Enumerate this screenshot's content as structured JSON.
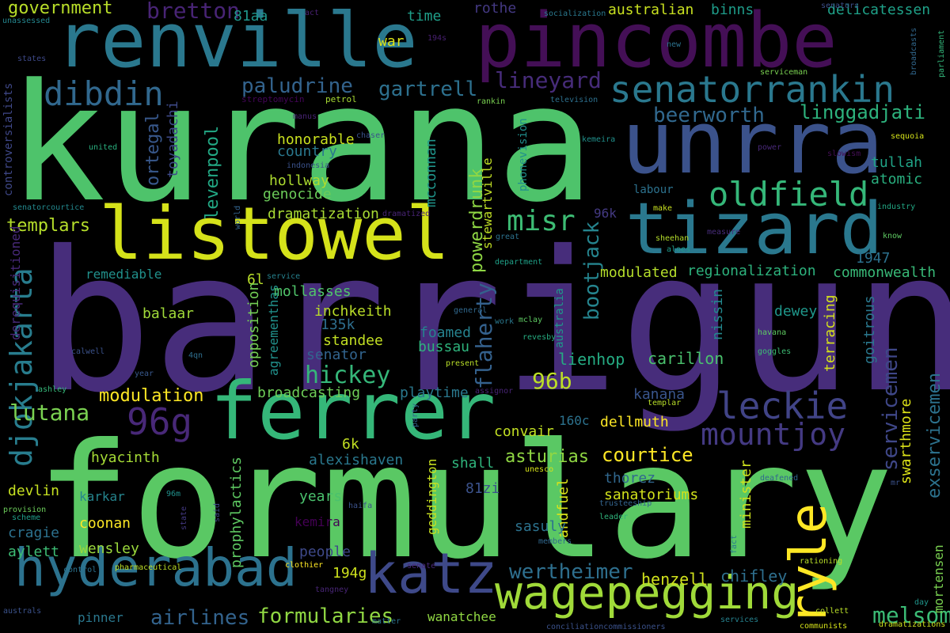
{
  "words": [
    {
      "text": "kurana",
      "color": "#4ec36b"
    },
    {
      "text": "barrigun",
      "color": "#472d7b"
    },
    {
      "text": "formulary",
      "color": "#5ac864"
    },
    {
      "text": "renville",
      "color": "#2a788e"
    },
    {
      "text": "pincombe",
      "color": "#440f56"
    },
    {
      "text": "unrra",
      "color": "#3b528b"
    },
    {
      "text": "listowel",
      "color": "#d5e21a"
    },
    {
      "text": "tizard",
      "color": "#2a788e"
    },
    {
      "text": "ferrer",
      "color": "#35b779"
    },
    {
      "text": "hyderabad",
      "color": "#2c728e"
    },
    {
      "text": "katz",
      "color": "#3e4989"
    },
    {
      "text": "wagepegging",
      "color": "#a0da39"
    },
    {
      "text": "ryle",
      "color": "#fde725"
    },
    {
      "text": "senatorrankin",
      "color": "#2a788e"
    },
    {
      "text": "oldfield",
      "color": "#35b779"
    },
    {
      "text": "leckie",
      "color": "#414487"
    },
    {
      "text": "mountjoy",
      "color": "#443a83"
    },
    {
      "text": "djokjakarta",
      "color": "#287d8e"
    },
    {
      "text": "96g",
      "color": "#482878"
    },
    {
      "text": "dibdin",
      "color": "#31688e"
    },
    {
      "text": "bretton",
      "color": "#482475"
    },
    {
      "text": "government",
      "color": "#b8de29"
    },
    {
      "text": "misr",
      "color": "#3dbc74"
    },
    {
      "text": "lineyard",
      "color": "#472c7a"
    },
    {
      "text": "paludrine",
      "color": "#33638d"
    },
    {
      "text": "gartrell",
      "color": "#2d708e"
    },
    {
      "text": "beerworth",
      "color": "#31688e"
    },
    {
      "text": "linggadjati",
      "color": "#2db27d"
    },
    {
      "text": "templars",
      "color": "#b5de2b"
    },
    {
      "text": "levenpool",
      "color": "#22a884"
    },
    {
      "text": "hickey",
      "color": "#35b779"
    },
    {
      "text": "modulation",
      "color": "#fde725"
    },
    {
      "text": "lutana",
      "color": "#7ad151"
    },
    {
      "text": "96b",
      "color": "#bddf26"
    },
    {
      "text": "formularies",
      "color": "#90d743"
    },
    {
      "text": "airlines",
      "color": "#33638d"
    },
    {
      "text": "wertheimer",
      "color": "#2e6f8e"
    },
    {
      "text": "courtice",
      "color": "#fde725"
    },
    {
      "text": "flaherty",
      "color": "#34618d"
    },
    {
      "text": "bootjack",
      "color": "#25848e"
    },
    {
      "text": "powerdrunk",
      "color": "#8fd744"
    },
    {
      "text": "servicemen",
      "color": "#3f4788"
    },
    {
      "text": "exservicemen",
      "color": "#2c728e"
    },
    {
      "text": "melsom",
      "color": "#3bbb75"
    },
    {
      "text": "mortensen",
      "color": "#7ad151"
    },
    {
      "text": "henzell",
      "color": "#d0e11c"
    },
    {
      "text": "chifley",
      "color": "#2e6f8e"
    },
    {
      "text": "regionalization",
      "color": "#2db27d"
    },
    {
      "text": "commonwealth",
      "color": "#38b977"
    },
    {
      "text": "modulated",
      "color": "#b5de2b"
    },
    {
      "text": "lienhop",
      "color": "#25ab82"
    },
    {
      "text": "carillon",
      "color": "#4ac16d"
    },
    {
      "text": "kanana",
      "color": "#39558c"
    },
    {
      "text": "dellmuth",
      "color": "#fde725"
    },
    {
      "text": "convair",
      "color": "#c2df23"
    },
    {
      "text": "asturias",
      "color": "#90d743"
    },
    {
      "text": "thorez",
      "color": "#31688e"
    },
    {
      "text": "sanatoriums",
      "color": "#d2e21b"
    },
    {
      "text": "andfuel",
      "color": "#dae319"
    },
    {
      "text": "minister",
      "color": "#cde11d"
    },
    {
      "text": "swarthmore",
      "color": "#dde318"
    },
    {
      "text": "goitrous",
      "color": "#2a788e"
    },
    {
      "text": "terracing",
      "color": "#d5e21a"
    },
    {
      "text": "nissin",
      "color": "#23888e"
    },
    {
      "text": "dewey",
      "color": "#1f978b"
    },
    {
      "text": "1947",
      "color": "#2c718e"
    },
    {
      "text": "tullah",
      "color": "#20a386"
    },
    {
      "text": "atomic",
      "color": "#29af7f"
    },
    {
      "text": "delicatessen",
      "color": "#1fa188"
    },
    {
      "text": "binns",
      "color": "#1e9c89"
    },
    {
      "text": "australian",
      "color": "#c8e020"
    },
    {
      "text": "rothe",
      "color": "#443983"
    },
    {
      "text": "time",
      "color": "#1f9e89"
    },
    {
      "text": "war",
      "color": "#dde318"
    },
    {
      "text": "81aa",
      "color": "#1f958b"
    },
    {
      "text": "mcconnan",
      "color": "#1f958b"
    },
    {
      "text": "stewartville",
      "color": "#c0df25"
    },
    {
      "text": "phonevision",
      "color": "#218f8d"
    },
    {
      "text": "honorable",
      "color": "#cae11f"
    },
    {
      "text": "country",
      "color": "#2a788e"
    },
    {
      "text": "hollway",
      "color": "#addc30"
    },
    {
      "text": "genocide",
      "color": "#6ccd5a"
    },
    {
      "text": "dramatization",
      "color": "#a8db34"
    },
    {
      "text": "ortegal",
      "color": "#38588c"
    },
    {
      "text": "toyadachi",
      "color": "#3e4a89"
    },
    {
      "text": "6l",
      "color": "#b8de29"
    },
    {
      "text": "opposition",
      "color": "#74d055"
    },
    {
      "text": "agreementhas",
      "color": "#21918c"
    },
    {
      "text": "inchkeith",
      "color": "#bade28"
    },
    {
      "text": "135k",
      "color": "#2e6e8e"
    },
    {
      "text": "standee",
      "color": "#c2df23"
    },
    {
      "text": "senator",
      "color": "#32648e"
    },
    {
      "text": "foamed",
      "color": "#26828e"
    },
    {
      "text": "bussau",
      "color": "#2eb37c"
    },
    {
      "text": "broadcasting",
      "color": "#6ece58"
    },
    {
      "text": "playtime",
      "color": "#2a788e"
    },
    {
      "text": "mollasses",
      "color": "#50c46a"
    },
    {
      "text": "remediable",
      "color": "#21918c"
    },
    {
      "text": "balaar",
      "color": "#a0da39"
    },
    {
      "text": "derequisitioned",
      "color": "#482979"
    },
    {
      "text": "hyacinth",
      "color": "#a5db36"
    },
    {
      "text": "devlin",
      "color": "#c5e021"
    },
    {
      "text": "karkar",
      "color": "#25858e"
    },
    {
      "text": "coonan",
      "color": "#fde725"
    },
    {
      "text": "cragie",
      "color": "#2c718e"
    },
    {
      "text": "aylett",
      "color": "#3dbc74"
    },
    {
      "text": "wensley",
      "color": "#9bd93c"
    },
    {
      "text": "alexishaven",
      "color": "#2a788e"
    },
    {
      "text": "6k",
      "color": "#c2df23"
    },
    {
      "text": "shall",
      "color": "#2fb47c"
    },
    {
      "text": "years",
      "color": "#4ac16d"
    },
    {
      "text": "people",
      "color": "#3e4989"
    },
    {
      "text": "kemira",
      "color": "#440154"
    },
    {
      "text": "sasuly",
      "color": "#2c728e"
    },
    {
      "text": "194g",
      "color": "#cde11d"
    },
    {
      "text": "81zi",
      "color": "#3b528b"
    },
    {
      "text": "geddington",
      "color": "#c8e020"
    },
    {
      "text": "prophylactics",
      "color": "#5ec962"
    },
    {
      "text": "wanatchee",
      "color": "#90d743"
    },
    {
      "text": "pinner",
      "color": "#2a788e"
    },
    {
      "text": "160c",
      "color": "#2c728e"
    },
    {
      "text": "australia",
      "color": "#1f988b"
    },
    {
      "text": "controversialists",
      "color": "#3f4889"
    },
    {
      "text": "senatorcourtice",
      "color": "#23898e"
    },
    {
      "text": "united",
      "color": "#2ab07f"
    },
    {
      "text": "indonesia",
      "color": "#3b528b"
    },
    {
      "text": "streptomycin",
      "color": "#450559"
    },
    {
      "text": "petrol",
      "color": "#a8db34"
    },
    {
      "text": "manus",
      "color": "#482374"
    },
    {
      "text": "rankin",
      "color": "#7ad151"
    },
    {
      "text": "television",
      "color": "#2d708e"
    },
    {
      "text": "socialization",
      "color": "#2a788e"
    },
    {
      "text": "senators",
      "color": "#3c4f8a"
    },
    {
      "text": "broadcasts",
      "color": "#31688e"
    },
    {
      "text": "parliament",
      "color": "#32b67a"
    },
    {
      "text": "unassessed",
      "color": "#24868e"
    },
    {
      "text": "states",
      "color": "#3e4989"
    },
    {
      "text": "194s",
      "color": "#482071"
    },
    {
      "text": "new",
      "color": "#2c728e"
    },
    {
      "text": "serviceman",
      "color": "#7ad151"
    },
    {
      "text": "chaser",
      "color": "#3b528b"
    },
    {
      "text": "kemeira",
      "color": "#21918c"
    },
    {
      "text": "power",
      "color": "#482878"
    },
    {
      "text": "slowism",
      "color": "#440f56"
    },
    {
      "text": "sequoia",
      "color": "#d5e21a"
    },
    {
      "text": "industry",
      "color": "#22a884"
    },
    {
      "text": "make",
      "color": "#c8e020"
    },
    {
      "text": "measure",
      "color": "#472c7a"
    },
    {
      "text": "know",
      "color": "#5ec962"
    },
    {
      "text": "sheehan",
      "color": "#b5de2b"
    },
    {
      "text": "aloes",
      "color": "#1f9a8a"
    },
    {
      "text": "96k",
      "color": "#443a83"
    },
    {
      "text": "world",
      "color": "#33638d"
    },
    {
      "text": "great",
      "color": "#2c728e"
    },
    {
      "text": "department",
      "color": "#1fa188"
    },
    {
      "text": "labour",
      "color": "#2c728e"
    },
    {
      "text": "service",
      "color": "#26828e"
    },
    {
      "text": "general",
      "color": "#31688e"
    },
    {
      "text": "work",
      "color": "#2a788e"
    },
    {
      "text": "mclay",
      "color": "#5ec962"
    },
    {
      "text": "present",
      "color": "#b8de29"
    },
    {
      "text": "revesby",
      "color": "#26ad81"
    },
    {
      "text": "assignor",
      "color": "#482475"
    },
    {
      "text": "templar",
      "color": "#b8de29"
    },
    {
      "text": "havana",
      "color": "#5ec962"
    },
    {
      "text": "goggles",
      "color": "#3dbc74"
    },
    {
      "text": "calwell",
      "color": "#3b528b"
    },
    {
      "text": "4qn",
      "color": "#2e6e8e"
    },
    {
      "text": "year",
      "color": "#38588c"
    },
    {
      "text": "ashley",
      "color": "#35b779"
    },
    {
      "text": "party",
      "color": "#33638d"
    },
    {
      "text": "said",
      "color": "#3e4989"
    },
    {
      "text": "unesco",
      "color": "#d5e21a"
    },
    {
      "text": "deafened",
      "color": "#31688e"
    },
    {
      "text": "96m",
      "color": "#21918c"
    },
    {
      "text": "haifa",
      "color": "#3b528b"
    },
    {
      "text": "state",
      "color": "#443a83"
    },
    {
      "text": "trusteeship",
      "color": "#33638d"
    },
    {
      "text": "leader",
      "color": "#2fb47c"
    },
    {
      "text": "fact",
      "color": "#2a788e"
    },
    {
      "text": "mr",
      "color": "#3b528b"
    },
    {
      "text": "provision",
      "color": "#6ccd5a"
    },
    {
      "text": "scheme",
      "color": "#1f9e89"
    },
    {
      "text": "members",
      "color": "#31688e"
    },
    {
      "text": "control",
      "color": "#2c728e"
    },
    {
      "text": "pharmaceutical",
      "color": "#bddf26"
    },
    {
      "text": "clothier",
      "color": "#fde725"
    },
    {
      "text": "senate",
      "color": "#482878"
    },
    {
      "text": "tangney",
      "color": "#482576"
    },
    {
      "text": "rationing",
      "color": "#b8de29"
    },
    {
      "text": "australs",
      "color": "#3b528b"
    },
    {
      "text": "collett",
      "color": "#b8de29"
    },
    {
      "text": "day",
      "color": "#1f958b"
    },
    {
      "text": "dramatizations",
      "color": "#cde11d"
    },
    {
      "text": "matter",
      "color": "#2c728e"
    },
    {
      "text": "conciliationcommissioners",
      "color": "#3b528b"
    },
    {
      "text": "services",
      "color": "#26828e"
    },
    {
      "text": "communists",
      "color": "#d5e21a"
    },
    {
      "text": "act",
      "color": "#482071"
    },
    {
      "text": "dramatized",
      "color": "#482475"
    }
  ]
}
